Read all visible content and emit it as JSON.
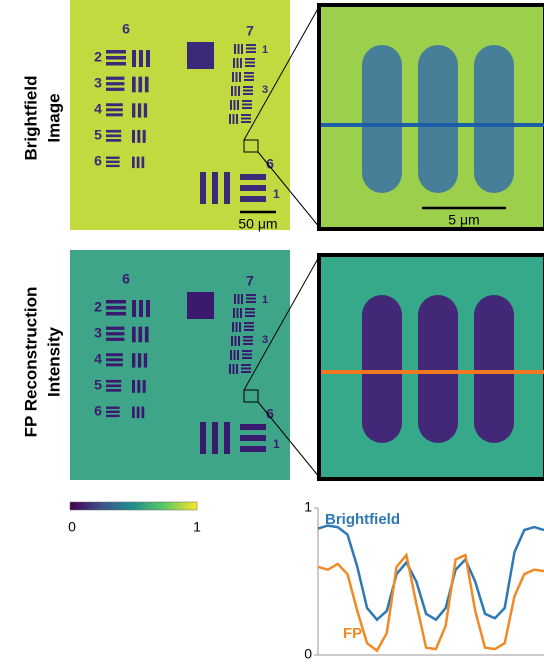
{
  "row_labels": {
    "top": [
      "Brightfield",
      "Image"
    ],
    "bottom": [
      "FP Reconstruction",
      "Intensity"
    ]
  },
  "target_labels": {
    "groups": [
      "6",
      "7"
    ],
    "elements_left": [
      "2",
      "3",
      "4",
      "5",
      "6"
    ],
    "elements_right": [
      "1",
      "3",
      "6",
      "1"
    ]
  },
  "scale_bars": {
    "overview": "50 μm",
    "zoom": "5 μm"
  },
  "colorbar": {
    "min_label": "0",
    "max_label": "1"
  },
  "chart_data": {
    "type": "line",
    "x": [
      0,
      1,
      2,
      3,
      4,
      5,
      6,
      7,
      8,
      9,
      10,
      11,
      12,
      13,
      14,
      15,
      16,
      17,
      18,
      19,
      20,
      21,
      22,
      23
    ],
    "xlim": [
      0,
      23
    ],
    "ylim": [
      0,
      1
    ],
    "yticks": [
      0,
      1
    ],
    "series": [
      {
        "name": "Brightfield",
        "color": "#2e78b4",
        "values": [
          0.86,
          0.88,
          0.87,
          0.82,
          0.6,
          0.32,
          0.24,
          0.3,
          0.55,
          0.63,
          0.5,
          0.28,
          0.24,
          0.32,
          0.58,
          0.65,
          0.5,
          0.28,
          0.25,
          0.32,
          0.7,
          0.85,
          0.87,
          0.85
        ]
      },
      {
        "name": "FP",
        "color": "#f08a24",
        "values": [
          0.6,
          0.58,
          0.62,
          0.55,
          0.3,
          0.08,
          0.03,
          0.15,
          0.6,
          0.68,
          0.35,
          0.05,
          0.04,
          0.2,
          0.65,
          0.68,
          0.3,
          0.05,
          0.04,
          0.08,
          0.4,
          0.55,
          0.58,
          0.57
        ]
      }
    ]
  }
}
